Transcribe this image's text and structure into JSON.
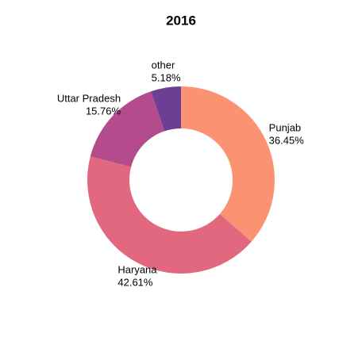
{
  "chart_data": {
    "type": "donut",
    "title": "2016",
    "categories": [
      "Punjab",
      "Haryana",
      "Uttar Pradesh",
      "other"
    ],
    "values": [
      36.45,
      42.61,
      15.76,
      5.18
    ],
    "value_labels": [
      "36.45%",
      "42.61%",
      "15.76%",
      "5.18%"
    ],
    "colors": [
      "#fb9272",
      "#e1687f",
      "#b34b8d",
      "#6c3f92"
    ]
  }
}
